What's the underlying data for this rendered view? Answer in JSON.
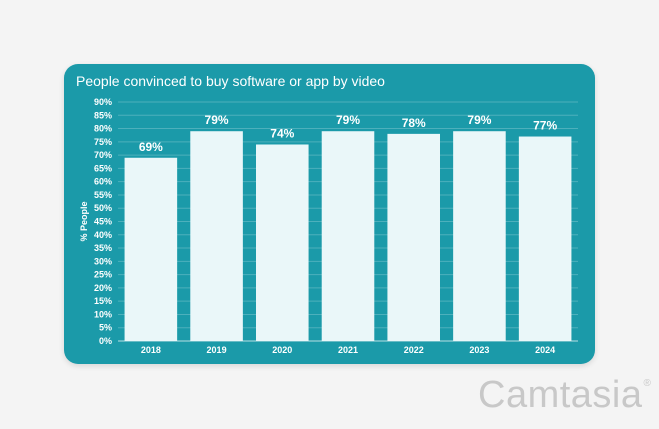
{
  "chart_data": {
    "type": "bar",
    "title": "People convinced to buy software or app by video",
    "xlabel": "",
    "ylabel": "% People",
    "categories": [
      "2018",
      "2019",
      "2020",
      "2021",
      "2022",
      "2023",
      "2024"
    ],
    "values": [
      69,
      79,
      74,
      79,
      78,
      79,
      77
    ],
    "value_labels": [
      "69%",
      "79%",
      "74%",
      "79%",
      "78%",
      "79%",
      "77%"
    ],
    "ylim": [
      0,
      90
    ],
    "ytick_step": 5,
    "ytick_labels": [
      "0%",
      "5%",
      "10%",
      "15%",
      "20%",
      "25%",
      "30%",
      "35%",
      "40%",
      "45%",
      "50%",
      "55%",
      "60%",
      "65%",
      "70%",
      "75%",
      "80%",
      "85%",
      "90%"
    ],
    "grid": true,
    "legend": "none"
  },
  "colors": {
    "background": "#f4f4f4",
    "card": "#1b9aa9",
    "bar": "#eaf7f9",
    "text": "#ffffff",
    "watermark": "#c8c8c8"
  },
  "watermark": {
    "text": "Camtasia",
    "mark": "®"
  }
}
